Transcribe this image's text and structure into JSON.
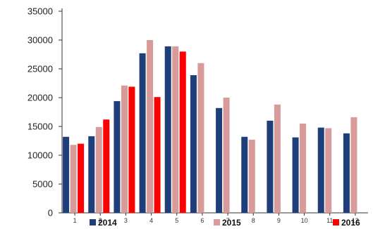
{
  "chart_data": {
    "type": "bar",
    "title": "",
    "xlabel": "",
    "ylabel": "",
    "categories": [
      "1",
      "2",
      "3",
      "4",
      "5",
      "6",
      "7",
      "8",
      "9",
      "10",
      "11",
      "12"
    ],
    "ylim": [
      0,
      35000
    ],
    "yticks": [
      0,
      5000,
      10000,
      15000,
      20000,
      25000,
      30000,
      35000
    ],
    "grid": false,
    "legend_position": "bottom",
    "series": [
      {
        "name": "2014",
        "color": "#1f3f7a",
        "values": [
          13200,
          13300,
          19400,
          27700,
          28900,
          23900,
          18200,
          13200,
          16000,
          13100,
          14800,
          13800
        ]
      },
      {
        "name": "2015",
        "color": "#d99a9a",
        "values": [
          11800,
          14900,
          22100,
          30000,
          28900,
          26000,
          20000,
          12700,
          18800,
          15500,
          14700,
          16600
        ]
      },
      {
        "name": "2016",
        "color": "#ff0000",
        "values": [
          12000,
          16200,
          21900,
          20100,
          28000,
          null,
          null,
          null,
          null,
          null,
          null,
          null
        ]
      }
    ]
  }
}
